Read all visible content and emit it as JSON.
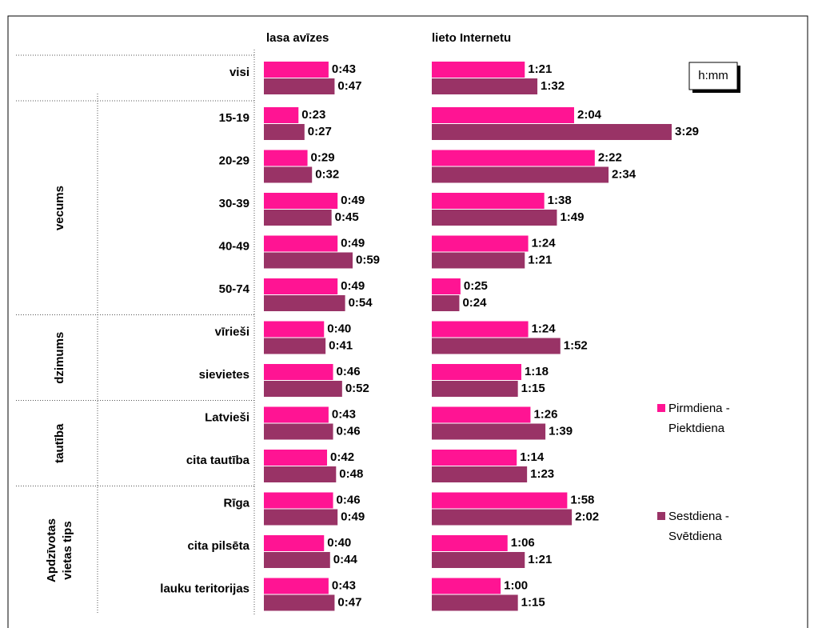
{
  "chart_data": {
    "type": "bar",
    "groups": [
      {
        "label": null,
        "categories": [
          "visi"
        ]
      },
      {
        "label": [
          "vecums"
        ],
        "categories": [
          "15-19",
          "20-29",
          "30-39",
          "40-49",
          "50-74"
        ]
      },
      {
        "label": [
          "dzimums"
        ],
        "categories": [
          "vīrieši",
          "sievietes"
        ]
      },
      {
        "label": [
          "tautība"
        ],
        "categories": [
          "Latvieši",
          "cita tautība"
        ]
      },
      {
        "label": [
          "Apdzīvotas",
          "vietas tips"
        ],
        "categories": [
          "Rīga",
          "cita pilsēta",
          "lauku teritorijas"
        ]
      }
    ],
    "unit_note": "h:mm",
    "legend": [
      {
        "name": [
          "Pirmdiena -",
          "Piektdiena"
        ],
        "color": "#ff1493"
      },
      {
        "name": [
          "Sestdiena -",
          "Svētdiena"
        ],
        "color": "#993366"
      }
    ],
    "panels": [
      {
        "title": "lasa avīzes",
        "series": [
          {
            "values": [
              43,
              23,
              29,
              49,
              49,
              49,
              40,
              46,
              43,
              42,
              46,
              40,
              43
            ],
            "value_labels": [
              "0:43",
              "0:23",
              "0:29",
              "0:49",
              "0:49",
              "0:49",
              "0:40",
              "0:46",
              "0:43",
              "0:42",
              "0:46",
              "0:40",
              "0:43"
            ]
          },
          {
            "values": [
              47,
              27,
              32,
              45,
              59,
              54,
              41,
              52,
              46,
              48,
              49,
              44,
              47
            ],
            "value_labels": [
              "0:47",
              "0:27",
              "0:32",
              "0:45",
              "0:59",
              "0:54",
              "0:41",
              "0:52",
              "0:46",
              "0:48",
              "0:49",
              "0:44",
              "0:47"
            ]
          }
        ]
      },
      {
        "title": "lieto Internetu",
        "series": [
          {
            "values": [
              81,
              124,
              142,
              98,
              84,
              25,
              84,
              78,
              86,
              74,
              118,
              66,
              60
            ],
            "value_labels": [
              "1:21",
              "2:04",
              "2:22",
              "1:38",
              "1:24",
              "0:25",
              "1:24",
              "1:18",
              "1:26",
              "1:14",
              "1:58",
              "1:06",
              "1:00"
            ]
          },
          {
            "values": [
              92,
              209,
              154,
              109,
              81,
              24,
              112,
              75,
              99,
              83,
              122,
              81,
              75
            ],
            "value_labels": [
              "1:32",
              "3:29",
              "2:34",
              "1:49",
              "1:21",
              "0:24",
              "1:52",
              "1:15",
              "1:39",
              "1:23",
              "2:02",
              "1:21",
              "1:15"
            ]
          }
        ]
      }
    ]
  }
}
